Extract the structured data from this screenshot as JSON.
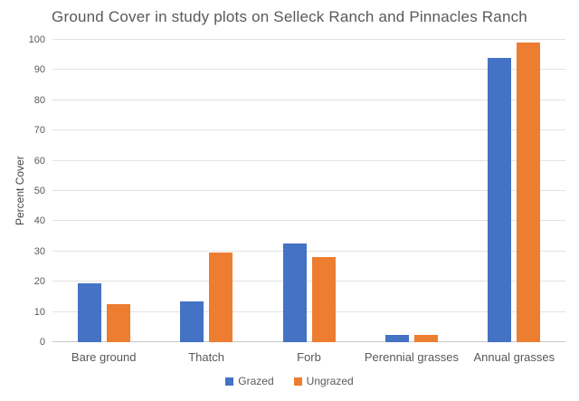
{
  "chart_data": {
    "type": "bar",
    "title": "Ground Cover in study plots on Selleck Ranch and Pinnacles Ranch",
    "xlabel": "",
    "ylabel": "Percent Cover",
    "ylim": [
      0,
      100
    ],
    "yticks": [
      0,
      10,
      20,
      30,
      40,
      50,
      60,
      70,
      80,
      90,
      100
    ],
    "grid": true,
    "legend_position": "bottom-center",
    "categories": [
      "Bare ground",
      "Thatch",
      "Forb",
      "Perennial grasses",
      "Annual grasses"
    ],
    "series": [
      {
        "name": "Grazed",
        "color": "#4472C4",
        "values": [
          19.5,
          13.5,
          32.5,
          2.5,
          94
        ]
      },
      {
        "name": "Ungrazed",
        "color": "#ED7D31",
        "values": [
          12.5,
          29.5,
          28,
          2.5,
          99
        ]
      }
    ],
    "colors": {
      "background": "#ffffff",
      "title_text": "#595959",
      "axis_text": "#595959",
      "gridline": "#e2e2e2",
      "axis_line": "#c9c9c9"
    }
  }
}
